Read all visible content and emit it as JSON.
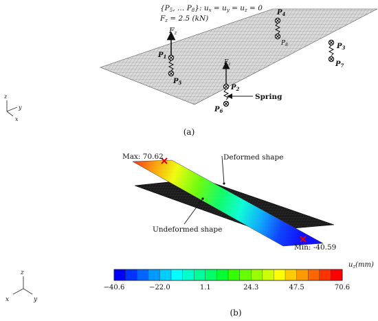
{
  "panel_a": {
    "constraint_lhs": "{P",
    "constraint_sub1": "5",
    "constraint_mid": ", … P",
    "constraint_sub2": "8",
    "constraint_rhs": "}: u",
    "constraint_x": "x",
    "constraint_eq1": " = u",
    "constraint_y": "y",
    "constraint_eq2": " = u",
    "constraint_z": "z",
    "constraint_end": " = 0",
    "force_lhs": "F",
    "force_sub": "z",
    "force_rhs": " = 2.5 (kN)",
    "force_label": "F",
    "force_label_sub": "z",
    "spring_label": "Spring",
    "points": [
      {
        "main": "P",
        "sub": "1"
      },
      {
        "main": "P",
        "sub": "2"
      },
      {
        "main": "P",
        "sub": "3"
      },
      {
        "main": "P",
        "sub": "4"
      },
      {
        "main": "P",
        "sub": "5"
      },
      {
        "main": "P",
        "sub": "6"
      },
      {
        "main": "P",
        "sub": "7"
      },
      {
        "main": "P",
        "sub": "8"
      }
    ],
    "axes": {
      "z": "z",
      "y": "y",
      "x": "x"
    },
    "caption": "(a)"
  },
  "panel_b": {
    "max_label": "Max: 70.62",
    "min_label": "Min: -40.59",
    "deformed_label": "Deformed shape",
    "undeformed_label": "Undeformed shape",
    "colorbar_title_main": "u",
    "colorbar_title_sub": "z",
    "colorbar_title_unit": "(mm)",
    "colorbar_ticks": [
      "−40.6",
      "−22.0",
      "1.1",
      "24.3",
      "47.5",
      "70.6"
    ],
    "colorbar_colors": [
      "#0000ff",
      "#0033ff",
      "#0066ff",
      "#0099ff",
      "#00ccff",
      "#00ffff",
      "#00ffcc",
      "#00ff99",
      "#00ff66",
      "#00ff33",
      "#33ff00",
      "#66ff00",
      "#99ff00",
      "#ccff00",
      "#ffff00",
      "#ffcc00",
      "#ff9900",
      "#ff6600",
      "#ff3300",
      "#ff0000"
    ],
    "axes": {
      "z": "z",
      "x": "x",
      "y": "y"
    },
    "caption": "(b)"
  }
}
